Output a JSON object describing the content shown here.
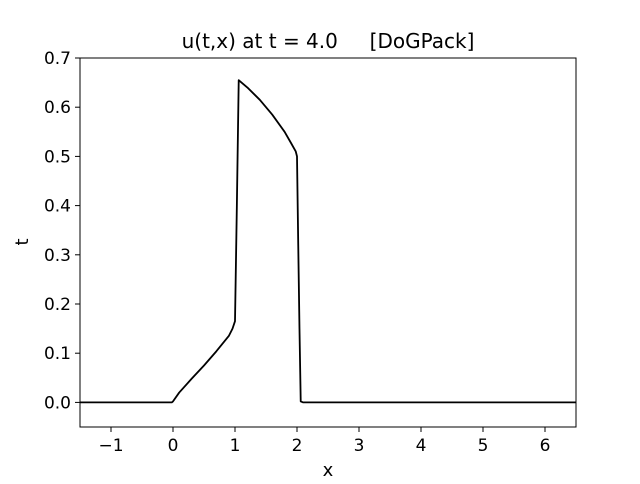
{
  "chart_data": {
    "type": "line",
    "title": "u(t,x) at t = 4.0     [DoGPack]",
    "xlabel": "x",
    "ylabel": "t",
    "xlim": [
      -1.5,
      6.5
    ],
    "ylim": [
      -0.05,
      0.7
    ],
    "xticks": [
      -1,
      0,
      1,
      2,
      3,
      4,
      5,
      6
    ],
    "xtick_labels": [
      "−1",
      "0",
      "1",
      "2",
      "3",
      "4",
      "5",
      "6"
    ],
    "yticks": [
      0.0,
      0.1,
      0.2,
      0.3,
      0.4,
      0.5,
      0.6,
      0.7
    ],
    "ytick_labels": [
      "0.0",
      "0.1",
      "0.2",
      "0.3",
      "0.4",
      "0.5",
      "0.6",
      "0.7"
    ],
    "grid": false,
    "legend": "none",
    "line_color": "#000000",
    "series": [
      {
        "x": [
          -1.5,
          -0.02,
          0.0,
          0.1,
          0.3,
          0.5,
          0.7,
          0.9,
          0.96,
          1.0,
          1.03,
          1.06,
          1.2,
          1.4,
          1.6,
          1.8,
          1.9,
          1.98,
          2.0,
          2.02,
          2.04,
          2.06,
          2.1,
          3.0,
          4.0,
          5.0,
          6.0,
          6.5
        ],
        "y": [
          0.0,
          0.0,
          0.002,
          0.02,
          0.048,
          0.075,
          0.104,
          0.135,
          0.15,
          0.165,
          0.4,
          0.655,
          0.64,
          0.615,
          0.585,
          0.55,
          0.528,
          0.51,
          0.5,
          0.32,
          0.15,
          0.002,
          0.0,
          0.0,
          0.0,
          0.0,
          0.0,
          0.0
        ]
      }
    ]
  }
}
